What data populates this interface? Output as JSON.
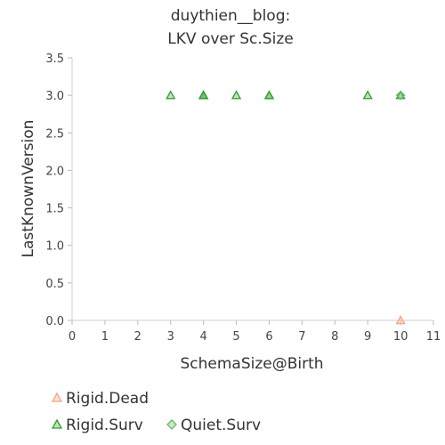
{
  "chart_data": {
    "type": "scatter",
    "title_lines": [
      "duythien__blog:",
      "LKV over Sc.Size"
    ],
    "xlabel": "SchemaSize@Birth",
    "ylabel": "LastKnownVersion",
    "xlim": [
      0,
      11
    ],
    "ylim": [
      0,
      3.5
    ],
    "x_ticks": [
      "0",
      "1",
      "2",
      "3",
      "4",
      "5",
      "6",
      "7",
      "8",
      "9",
      "10",
      "11"
    ],
    "y_ticks": [
      "0.0",
      "0.5",
      "1.0",
      "1.5",
      "2.0",
      "2.5",
      "3.0",
      "3.5"
    ],
    "grid": false,
    "legend_position": "bottom",
    "series": [
      {
        "name": "Rigid.Dead",
        "marker": "triangle",
        "color": "#f4a582",
        "points": [
          [
            10,
            0
          ]
        ]
      },
      {
        "name": "Rigid.Surv",
        "marker": "triangle",
        "color": "#2ca02c",
        "points": [
          [
            3,
            3
          ],
          [
            4,
            3
          ],
          [
            4,
            3
          ],
          [
            4,
            3
          ],
          [
            5,
            3
          ],
          [
            6,
            3
          ],
          [
            6,
            3
          ],
          [
            9,
            3
          ],
          [
            10,
            3
          ]
        ]
      },
      {
        "name": "Quiet.Surv",
        "marker": "diamond",
        "color": "#66bb66",
        "points": [
          [
            10,
            3
          ]
        ]
      }
    ]
  }
}
